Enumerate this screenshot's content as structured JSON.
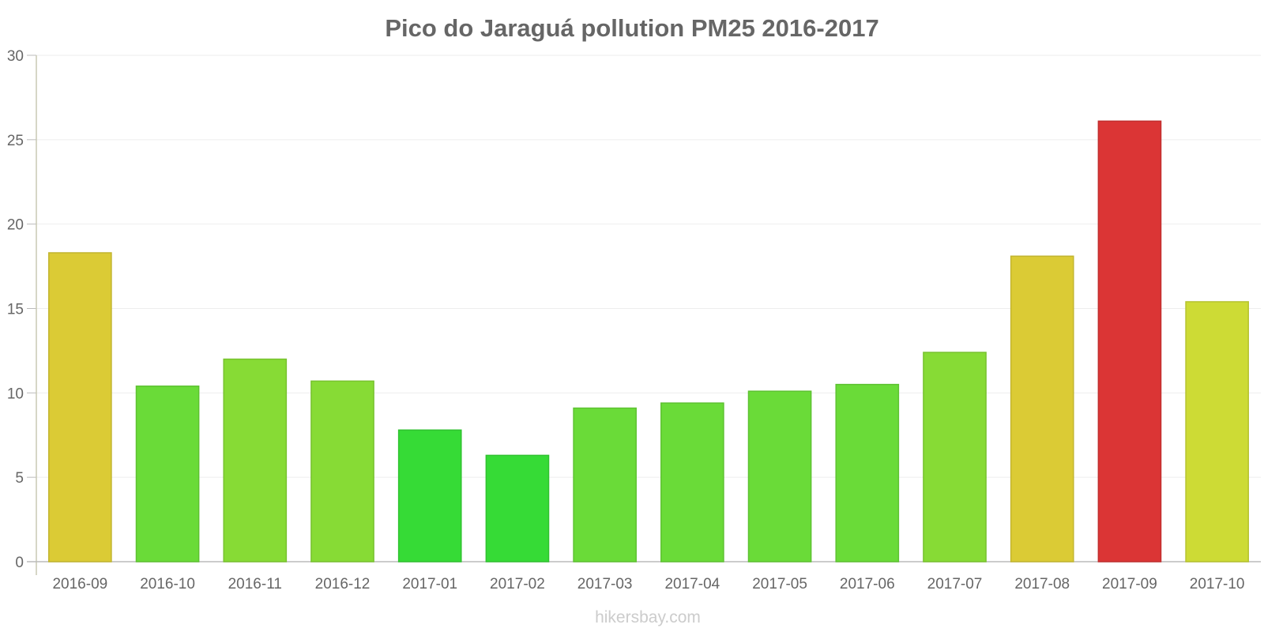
{
  "chart_data": {
    "type": "bar",
    "title": "Pico do Jaraguá pollution PM25 2016-2017",
    "xlabel": "",
    "ylabel": "",
    "ylim": [
      0,
      30
    ],
    "yticks": [
      "0",
      "5",
      "10",
      "15",
      "20",
      "25",
      "30"
    ],
    "grid": true,
    "categories": [
      "2016-09",
      "2016-10",
      "2016-11",
      "2016-12",
      "2017-01",
      "2017-02",
      "2017-03",
      "2017-04",
      "2017-05",
      "2017-06",
      "2017-07",
      "2017-08",
      "2017-09",
      "2017-10"
    ],
    "values": [
      18.3,
      10.4,
      12.0,
      10.7,
      7.8,
      6.3,
      9.1,
      9.4,
      10.1,
      10.5,
      12.4,
      18.1,
      26.1,
      15.4
    ],
    "bar_colors": [
      "#dbcb35",
      "#6adb38",
      "#87db35",
      "#87db35",
      "#36db36",
      "#36db36",
      "#6adb38",
      "#6adb38",
      "#6adb38",
      "#6adb38",
      "#87db35",
      "#dbcb35",
      "#db3535",
      "#cddb35"
    ],
    "bar_border_colors": [
      "#c2b52f",
      "#5ec232",
      "#78c22f",
      "#78c22f",
      "#30c230",
      "#30c230",
      "#5ec232",
      "#5ec232",
      "#5ec232",
      "#5ec232",
      "#78c22f",
      "#c2b52f",
      "#c22f2f",
      "#b6c22f"
    ]
  },
  "watermark": "hikersbay.com"
}
